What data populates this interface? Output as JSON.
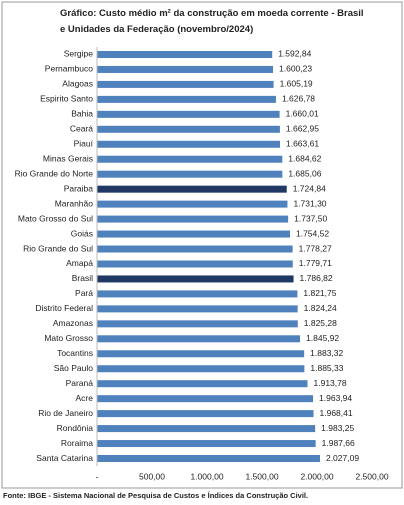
{
  "chart_data": {
    "type": "barh",
    "title": "Gráfico: Custo médio m² da construção em moeda corrente - Brasil e Unidades da Federação (novembro/2024)",
    "source": "Fonte: IBGE - Sistema Nacional de Pesquisa de Custos e Índices da Construção Civil.",
    "categories": [
      "Sergipe",
      "Pernambuco",
      "Alagoas",
      "Espirito Santo",
      "Bahia",
      "Ceará",
      "Piauí",
      "Minas Gerais",
      "Rio Grande do Norte",
      "Paraiba",
      "Maranhão",
      "Mato Grosso do Sul",
      "Goiás",
      "Rio Grande do Sul",
      "Amapá",
      "Brasil",
      "Pará",
      "Distrito Federal",
      "Amazonas",
      "Mato Grosso",
      "Tocantins",
      "São Paulo",
      "Paraná",
      "Acre",
      "Rio de Janeiro",
      "Rondônia",
      "Roraima",
      "Santa Catarina"
    ],
    "values": [
      1592.84,
      1600.23,
      1605.19,
      1626.78,
      1660.01,
      1662.95,
      1663.61,
      1684.62,
      1685.06,
      1724.84,
      1731.3,
      1737.5,
      1754.52,
      1778.27,
      1779.71,
      1786.82,
      1821.75,
      1824.24,
      1825.28,
      1845.92,
      1883.32,
      1885.33,
      1913.78,
      1963.94,
      1968.41,
      1983.25,
      1987.66,
      2027.09
    ],
    "value_labels": [
      "1.592,84",
      "1.600,23",
      "1.605,19",
      "1.626,78",
      "1.660,01",
      "1.662,95",
      "1.663,61",
      "1.684,62",
      "1.685,06",
      "1.724,84",
      "1.731,30",
      "1.737,50",
      "1.754,52",
      "1.778,27",
      "1.779,71",
      "1.786,82",
      "1.821,75",
      "1.824,24",
      "1.825,28",
      "1.845,92",
      "1.883,32",
      "1.885,33",
      "1.913,78",
      "1.963,94",
      "1.968,41",
      "1.983,25",
      "1.987,66",
      "2.027,09"
    ],
    "colors": [
      "#4f81bd",
      "#4f81bd",
      "#4f81bd",
      "#4f81bd",
      "#4f81bd",
      "#4f81bd",
      "#4f81bd",
      "#4f81bd",
      "#4f81bd",
      "#1f3864",
      "#4f81bd",
      "#4f81bd",
      "#4f81bd",
      "#4f81bd",
      "#4f81bd",
      "#1f3864",
      "#4f81bd",
      "#4f81bd",
      "#4f81bd",
      "#4f81bd",
      "#4f81bd",
      "#4f81bd",
      "#4f81bd",
      "#4f81bd",
      "#4f81bd",
      "#4f81bd",
      "#4f81bd",
      "#4f81bd"
    ],
    "xlim": [
      0,
      2500
    ],
    "xticks": [
      {
        "value": 0,
        "label": "-"
      },
      {
        "value": 500,
        "label": "500,00"
      },
      {
        "value": 1000,
        "label": "1.000,00"
      },
      {
        "value": 1500,
        "label": "1.500,00"
      },
      {
        "value": 2000,
        "label": "2.000,00"
      },
      {
        "value": 2500,
        "label": "2.500,00"
      }
    ]
  }
}
